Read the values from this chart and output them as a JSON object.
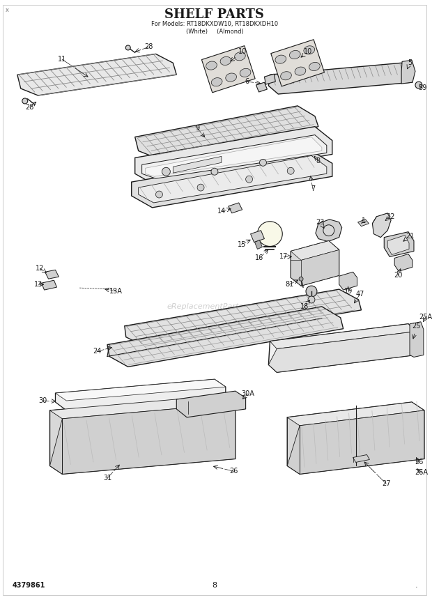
{
  "title": "SHELF PARTS",
  "subtitle_line1": "For Models: RT18DKXDW10, RT18DKXDH10",
  "subtitle_line2": "(White)     (Almond)",
  "watermark": "eReplacementParts.com",
  "part_number": "4379861",
  "page_number": "8",
  "bg": "#ffffff",
  "lc": "#1a1a1a",
  "gray1": "#d0d0d0",
  "gray2": "#e8e8e8",
  "gray3": "#b0b0b0",
  "hatch_color": "#555555",
  "figw": 6.2,
  "figh": 8.61,
  "dpi": 100
}
